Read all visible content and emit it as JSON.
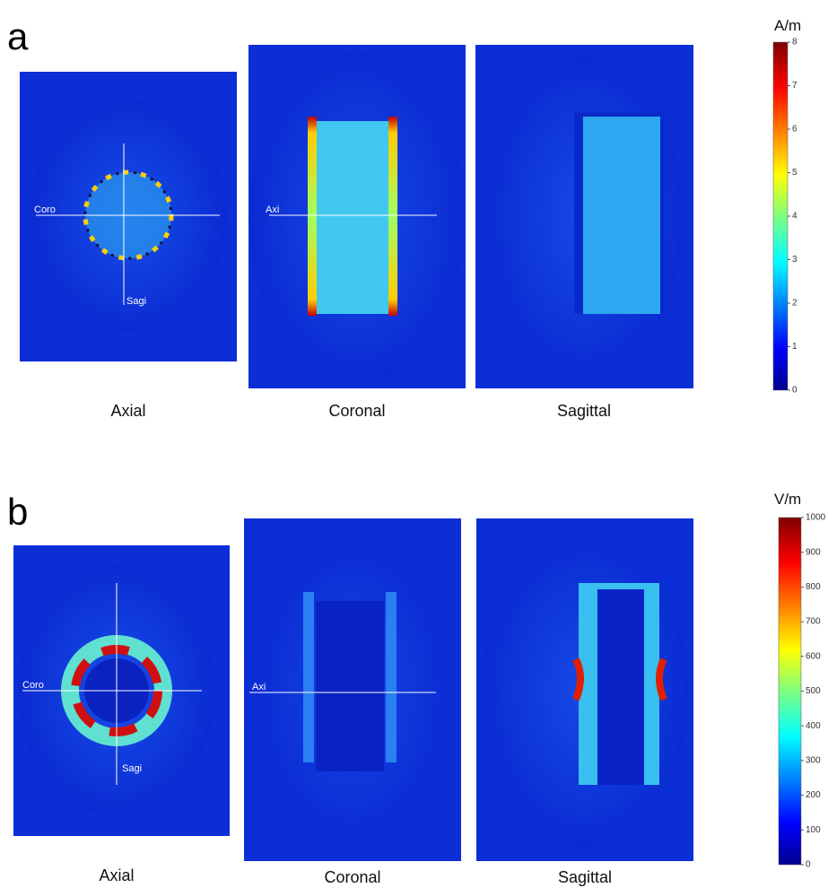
{
  "panels": [
    {
      "letter": "a",
      "unit": "A/m",
      "colorbar": {
        "range": [
          0,
          8
        ],
        "ticks": [
          0,
          1,
          2,
          3,
          4,
          5,
          6,
          7,
          8
        ]
      },
      "views": [
        {
          "label": "Axial",
          "crosshair": [
            "Coro",
            "Sagi"
          ]
        },
        {
          "label": "Coronal",
          "crosshair": [
            "Axi"
          ]
        },
        {
          "label": "Sagittal"
        }
      ]
    },
    {
      "letter": "b",
      "unit": "V/m",
      "colorbar": {
        "range": [
          0,
          1000
        ],
        "ticks": [
          0,
          100,
          200,
          300,
          400,
          500,
          600,
          700,
          800,
          900,
          1000
        ]
      },
      "views": [
        {
          "label": "Axial",
          "crosshair": [
            "Coro",
            "Sagi"
          ]
        },
        {
          "label": "Coronal",
          "crosshair": [
            "Axi"
          ]
        },
        {
          "label": "Sagittal"
        }
      ]
    }
  ]
}
